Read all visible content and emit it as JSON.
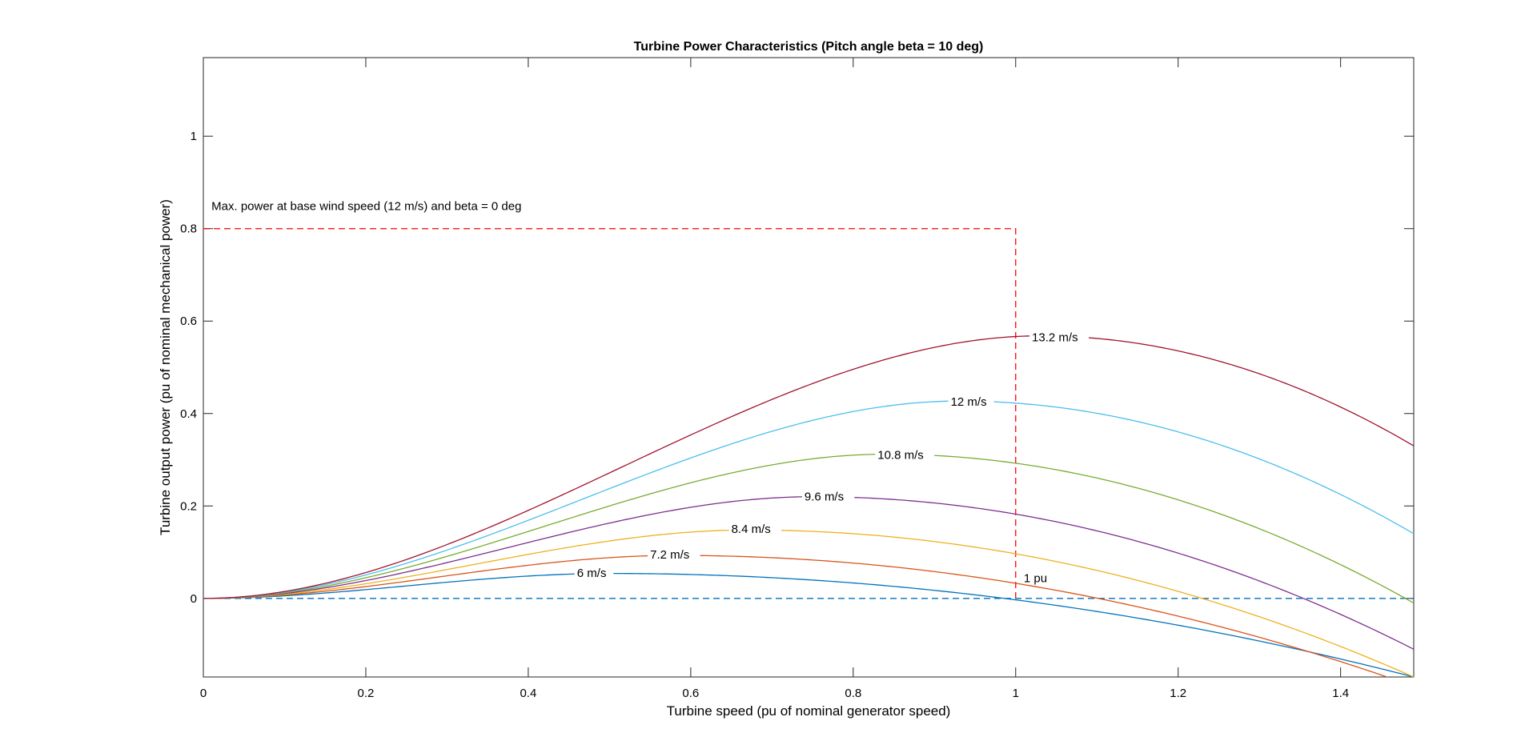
{
  "chart_data": {
    "type": "line",
    "title": "Turbine Power Characteristics (Pitch angle beta = 10 deg)",
    "xlabel": "Turbine speed (pu of nominal generator speed)",
    "ylabel": "Turbine output power (pu of nominal mechanical power)",
    "xlim": [
      0,
      1.49
    ],
    "ylim": [
      -0.17,
      1.17
    ],
    "xticks": [
      "0",
      "0.2",
      "0.4",
      "0.6",
      "0.8",
      "1",
      "1.2",
      "1.4"
    ],
    "yticks": [
      "0",
      "0.2",
      "0.4",
      "0.6",
      "0.8",
      "1"
    ],
    "xtick_values": [
      0,
      0.2,
      0.4,
      0.6,
      0.8,
      1.0,
      1.2,
      1.4
    ],
    "ytick_values": [
      0,
      0.2,
      0.4,
      0.6,
      0.8,
      1.0
    ],
    "grid": false,
    "series": [
      {
        "name": "6 m/s",
        "color": "#0072BD",
        "peak_x": 0.5,
        "peak_y": 0.054,
        "x_end": 1.49,
        "y_end": -0.17,
        "label_x": 0.46,
        "label_y": 0.05
      },
      {
        "name": "7.2 m/s",
        "color": "#D95319",
        "peak_x": 0.58,
        "peak_y": 0.093,
        "x_end": 1.49,
        "y_end": -0.19,
        "label_x": 0.55,
        "label_y": 0.09
      },
      {
        "name": "8.4 m/s",
        "color": "#EDB120",
        "peak_x": 0.67,
        "peak_y": 0.148,
        "x_end": 1.49,
        "y_end": -0.17,
        "label_x": 0.65,
        "label_y": 0.145
      },
      {
        "name": "9.6 m/s",
        "color": "#7E2F8E",
        "peak_x": 0.75,
        "peak_y": 0.22,
        "x_end": 1.49,
        "y_end": -0.11,
        "label_x": 0.74,
        "label_y": 0.215
      },
      {
        "name": "10.8 m/s",
        "color": "#77AC30",
        "peak_x": 0.84,
        "peak_y": 0.312,
        "x_end": 1.49,
        "y_end": -0.01,
        "label_x": 0.83,
        "label_y": 0.305
      },
      {
        "name": "12 m/s",
        "color": "#4DBEEE",
        "peak_x": 0.93,
        "peak_y": 0.427,
        "x_end": 1.49,
        "y_end": 0.14,
        "label_x": 0.92,
        "label_y": 0.42
      },
      {
        "name": "13.2 m/s",
        "color": "#A2142F",
        "peak_x": 1.03,
        "peak_y": 0.568,
        "x_end": 1.49,
        "y_end": 0.33,
        "label_x": 1.02,
        "label_y": 0.56
      }
    ],
    "reference_lines": {
      "max_power": {
        "y": 0.8,
        "x_end": 1.0,
        "color": "#FF0000"
      },
      "zero_line": {
        "y": 0,
        "color": "#0072BD"
      }
    },
    "annotations": {
      "max_power_text": "Max. power at base wind speed (12 m/s) and beta = 0 deg",
      "max_power_text_x": 0.01,
      "max_power_text_y": 0.84,
      "one_pu_text": "1 pu",
      "one_pu_text_x": 1.01,
      "one_pu_text_y": 0.035
    }
  }
}
